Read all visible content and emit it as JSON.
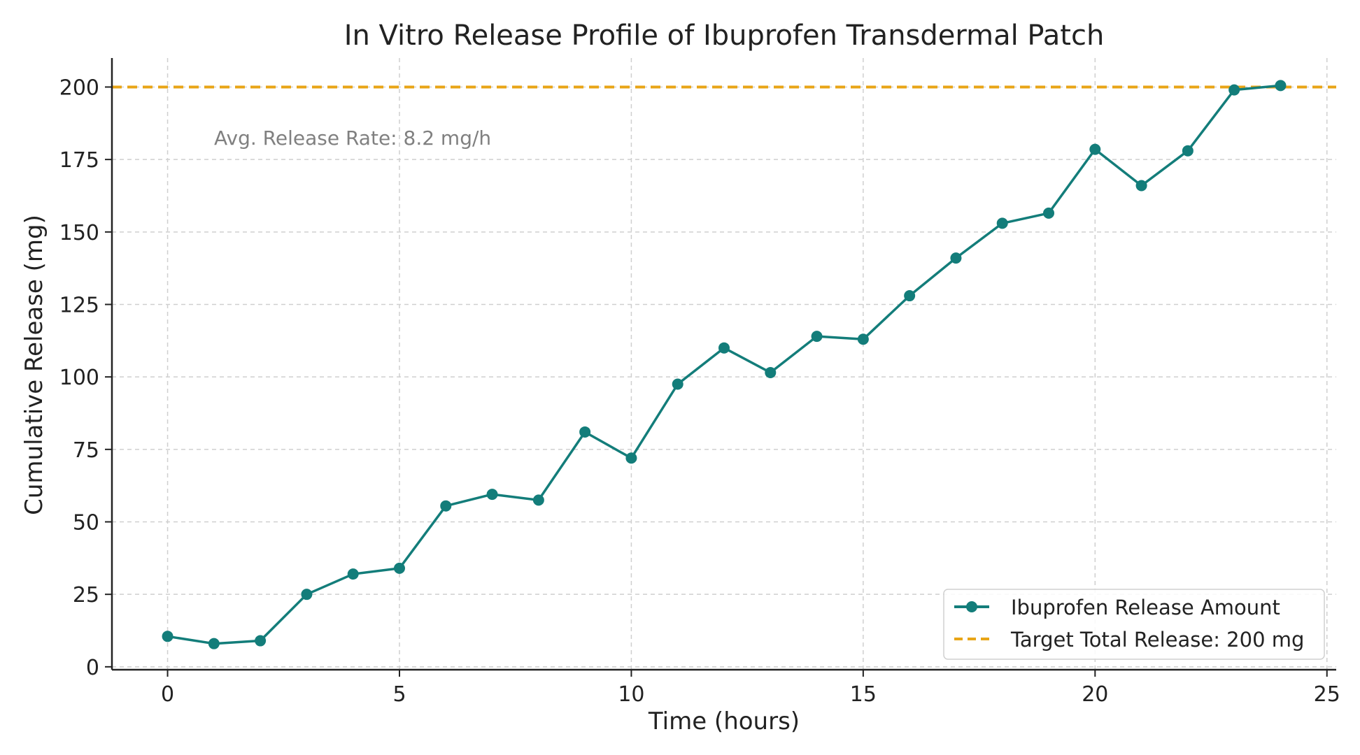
{
  "chart_data": {
    "type": "line",
    "title": "In Vitro Release Profile of Ibuprofen Transdermal Patch",
    "xlabel": "Time (hours)",
    "ylabel": "Cumulative Release (mg)",
    "xlim": [
      -1.2,
      25.2
    ],
    "ylim": [
      -1,
      210
    ],
    "xticks": [
      0,
      5,
      10,
      15,
      20,
      25
    ],
    "yticks": [
      0,
      25,
      50,
      75,
      100,
      125,
      150,
      175,
      200
    ],
    "grid": true,
    "legend_position": "bottom-right",
    "x": [
      0,
      1,
      2,
      3,
      4,
      5,
      6,
      7,
      8,
      9,
      10,
      11,
      12,
      13,
      14,
      15,
      16,
      17,
      18,
      19,
      20,
      21,
      22,
      23,
      24
    ],
    "series": [
      {
        "name": "Ibuprofen Release Amount",
        "values": [
          10.5,
          8,
          9,
          25,
          32,
          34,
          55.5,
          59.5,
          57.5,
          81,
          72,
          97.5,
          110,
          101.5,
          114,
          113,
          128,
          141,
          153,
          156.5,
          178.5,
          166,
          178,
          199,
          200.5
        ],
        "color": "#137d7a",
        "marker": "circle"
      }
    ],
    "reference_line": {
      "label": "Target Total Release: 200 mg",
      "y": 200,
      "color": "#e8a517",
      "style": "dashed"
    },
    "annotation": "Avg. Release Rate: 8.2 mg/h"
  }
}
